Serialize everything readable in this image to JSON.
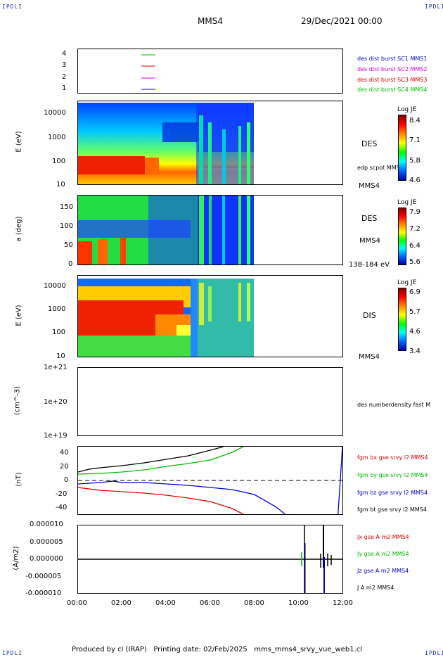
{
  "header": {
    "corner_tl": "IPDLI",
    "corner_tr": "IPDLI",
    "corner_bl": "IPDLI",
    "corner_br": "IPDLI",
    "spacecraft": "MMS4",
    "date": "29/Dec/2021 00:00"
  },
  "footer": {
    "produced": "Produced by cl (IRAP)   Printing date: 02/Feb/2025   mms_mms4_srvy_vue_web1.cl"
  },
  "x_ticks": [
    "00:00",
    "02:00",
    "04:00",
    "06:00",
    "08:00",
    "10:00",
    "12:00"
  ],
  "colors": {
    "blue": "#0000cc",
    "magenta": "#cc00cc",
    "red": "#dd0000",
    "green": "#00bb00",
    "black": "#000000"
  },
  "chart_data": [
    {
      "type": "line",
      "id": "availability",
      "y_ticks": [
        "4",
        "3",
        "2",
        "1"
      ],
      "legend": [
        {
          "label": "des dist burst SC1 MMS1",
          "color": "#0000cc"
        },
        {
          "label": "des dist burst SC2 MMS2",
          "color": "#cc00cc"
        },
        {
          "label": "des dist burst SC3 MMS3",
          "color": "#dd0000"
        },
        {
          "label": "des dist burst SC4 MMS4",
          "color": "#00bb00"
        }
      ]
    },
    {
      "type": "heatmap",
      "id": "des-energy",
      "ylabel": "E (eV)",
      "y_ticks": [
        "10000",
        "1000",
        "100",
        "10"
      ],
      "side_label": "DES",
      "side_sub": "edp scpot MMS4",
      "bottom_label": "MMS4",
      "colorbar": {
        "title": "Log JE",
        "ticks": [
          "8.4",
          "7.1",
          "5.8",
          "4.6"
        ]
      }
    },
    {
      "type": "heatmap",
      "id": "des-pitch",
      "ylabel": "a (deg)",
      "y_ticks": [
        "150",
        "100",
        "50",
        "0"
      ],
      "side_label": "DES",
      "side_sub": "MMS4",
      "bottom_label": "138-184 eV",
      "colorbar": {
        "title": "Log JE",
        "ticks": [
          "7.9",
          "7.2",
          "6.4",
          "5.6"
        ]
      }
    },
    {
      "type": "heatmap",
      "id": "dis-energy",
      "ylabel": "E (eV)",
      "y_ticks": [
        "10000",
        "1000",
        "100",
        "10"
      ],
      "side_label": "DIS",
      "bottom_label": "MMS4",
      "colorbar": {
        "title": "Log JE",
        "ticks": [
          "6.9",
          "5.7",
          "4.6",
          "3.4"
        ]
      }
    },
    {
      "type": "line",
      "id": "density",
      "ylabel": "(cm^-3)",
      "y_ticks": [
        "1e+21",
        "1e+20",
        "1e+19"
      ],
      "legend": [
        {
          "label": "des numberdensity fast M",
          "color": "#000000"
        }
      ]
    },
    {
      "type": "line",
      "id": "bfield",
      "ylabel": "(nT)",
      "y_ticks": [
        "40",
        "20",
        "0",
        "-20",
        "-40"
      ],
      "ylim": [
        -48,
        48
      ],
      "legend": [
        {
          "label": "fgm bx gse srvy l2 MMS4",
          "color": "#dd0000"
        },
        {
          "label": "fgm by gse srvy l2 MMS4",
          "color": "#00bb00"
        },
        {
          "label": "fgm bz gse srvy l2 MMS4",
          "color": "#0000cc"
        },
        {
          "label": "fgm bt gse srvy l2 MMS4",
          "color": "#000000"
        }
      ],
      "series": [
        {
          "name": "fgm bt gse srvy l2 MMS4",
          "x": [
            0,
            0.5,
            1,
            2,
            3,
            4,
            5,
            6,
            6.6
          ],
          "y": [
            12,
            16,
            18,
            21,
            25,
            30,
            35,
            43,
            48
          ]
        },
        {
          "name": "fgm by gse srvy l2 MMS4",
          "x": [
            0,
            1,
            2,
            3,
            4,
            5,
            6,
            7,
            7.5
          ],
          "y": [
            9,
            10,
            12,
            15,
            20,
            24,
            29,
            40,
            48
          ]
        },
        {
          "name": "fgm bz gse srvy l2 MMS4",
          "x": [
            0,
            1,
            1.6,
            2,
            3,
            4,
            5,
            6,
            7,
            8,
            9,
            9.4
          ],
          "y": [
            -5,
            -3,
            -1,
            -3,
            -3,
            -5,
            -7,
            -10,
            -13,
            -20,
            -38,
            -48
          ]
        },
        {
          "name": "fgm bx gse srvy l2 MMS4",
          "x": [
            0,
            1,
            2,
            3,
            4,
            5,
            6,
            7,
            7.5
          ],
          "y": [
            -10,
            -14,
            -16,
            -18,
            -21,
            -25,
            -30,
            -40,
            -48
          ]
        },
        {
          "name": "fgm bz gse srvy l2 MMS4",
          "x": [
            11.8,
            11.9,
            12
          ],
          "y": [
            -48,
            0,
            48
          ]
        }
      ]
    },
    {
      "type": "line",
      "id": "current",
      "ylabel": "(A/m2)",
      "y_ticks": [
        "0.000010",
        "0.000005",
        "0.000000",
        "-0.000005",
        "-0.000010"
      ],
      "ylim": [
        -1e-05,
        1e-05
      ],
      "legend": [
        {
          "label": "Jx gse A m2 MMS4",
          "color": "#dd0000"
        },
        {
          "label": "Jy gse A m2 MMS4",
          "color": "#00bb00"
        },
        {
          "label": "Jz gse A m2 MMS4",
          "color": "#0000cc"
        },
        {
          "label": "J A m2 MMS4",
          "color": "#000000"
        }
      ]
    }
  ]
}
